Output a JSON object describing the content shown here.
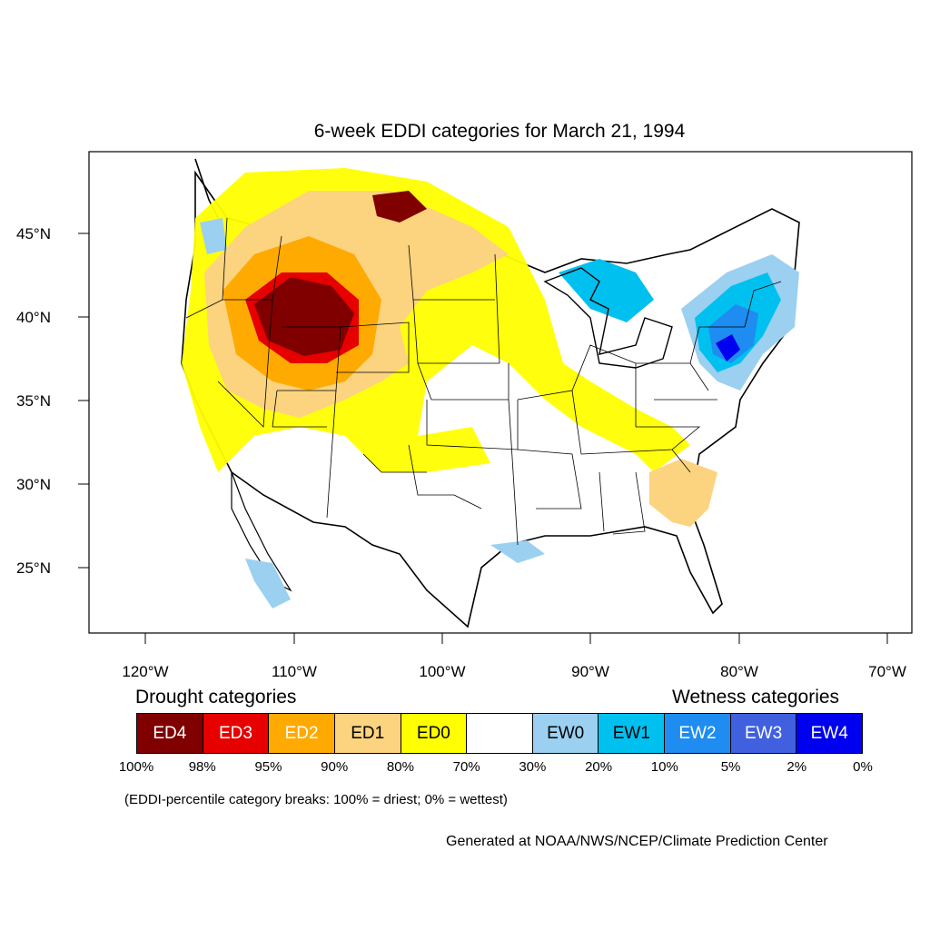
{
  "title": "6-week EDDI categories for March 21, 1994",
  "map": {
    "lat_labels": [
      "45°N",
      "40°N",
      "35°N",
      "30°N",
      "25°N"
    ],
    "lon_labels": [
      "120°W",
      "110°W",
      "100°W",
      "90°W",
      "80°W",
      "70°W"
    ]
  },
  "legend": {
    "drought_heading": "Drought categories",
    "wetness_heading": "Wetness categories",
    "categories": [
      {
        "label": "ED4",
        "color": "#800000",
        "text_color": "#ffffff"
      },
      {
        "label": "ED3",
        "color": "#e60000",
        "text_color": "#ffffff"
      },
      {
        "label": "ED2",
        "color": "#ffaa00",
        "text_color": "#ffffff"
      },
      {
        "label": "ED1",
        "color": "#fcd37f",
        "text_color": "#000000"
      },
      {
        "label": "ED0",
        "color": "#ffff00",
        "text_color": "#000000"
      },
      {
        "label": "",
        "color": "#ffffff",
        "text_color": "#000000"
      },
      {
        "label": "EW0",
        "color": "#9bd0f0",
        "text_color": "#000000"
      },
      {
        "label": "EW1",
        "color": "#00c0f0",
        "text_color": "#000000"
      },
      {
        "label": "EW2",
        "color": "#1e8cf0",
        "text_color": "#ffffff"
      },
      {
        "label": "EW3",
        "color": "#4060e0",
        "text_color": "#ffffff"
      },
      {
        "label": "EW4",
        "color": "#0000f0",
        "text_color": "#ffffff"
      }
    ],
    "breaks": [
      "100%",
      "98%",
      "95%",
      "90%",
      "80%",
      "70%",
      "30%",
      "20%",
      "10%",
      "5%",
      "2%",
      "0%"
    ],
    "note": "(EDDI-percentile category breaks: 100% = driest; 0% = wettest)"
  },
  "credit": "Generated at NOAA/NWS/NCEP/Climate Prediction Center"
}
